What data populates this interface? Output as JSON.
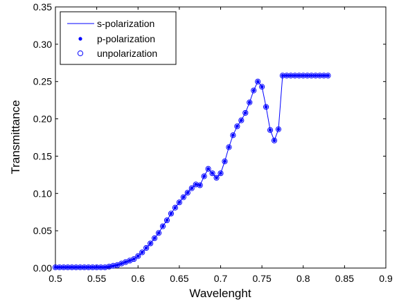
{
  "chart_data": {
    "type": "line",
    "xlabel": "Wavelenght",
    "ylabel": "Transmittance",
    "xlim": [
      0.5,
      0.9
    ],
    "ylim": [
      0,
      0.35
    ],
    "xticks": [
      "0.5",
      "0.55",
      "0.6",
      "0.65",
      "0.7",
      "0.75",
      "0.8",
      "0.85",
      "0.9"
    ],
    "yticks": [
      "0.00",
      "0.05",
      "0.10",
      "0.15",
      "0.20",
      "0.25",
      "0.30",
      "0.35"
    ],
    "grid": false,
    "legend_position": "top-left",
    "color": "#0000ff",
    "x": [
      0.5,
      0.505,
      0.51,
      0.515,
      0.52,
      0.525,
      0.53,
      0.535,
      0.54,
      0.545,
      0.55,
      0.555,
      0.56,
      0.565,
      0.57,
      0.575,
      0.58,
      0.585,
      0.59,
      0.595,
      0.6,
      0.605,
      0.61,
      0.615,
      0.62,
      0.625,
      0.63,
      0.635,
      0.64,
      0.645,
      0.65,
      0.655,
      0.66,
      0.665,
      0.67,
      0.675,
      0.68,
      0.685,
      0.69,
      0.695,
      0.7,
      0.705,
      0.71,
      0.715,
      0.72,
      0.725,
      0.73,
      0.735,
      0.74,
      0.745,
      0.75,
      0.755,
      0.76,
      0.765,
      0.77,
      0.775,
      0.78,
      0.785,
      0.79,
      0.795,
      0.8,
      0.805,
      0.81,
      0.815,
      0.82,
      0.825,
      0.83
    ],
    "series": [
      {
        "name": "s-polarization",
        "marker": "line",
        "values": [
          0.001,
          0.001,
          0.001,
          0.001,
          0.001,
          0.001,
          0.001,
          0.001,
          0.001,
          0.001,
          0.001,
          0.001,
          0.001,
          0.002,
          0.003,
          0.004,
          0.006,
          0.008,
          0.01,
          0.012,
          0.016,
          0.021,
          0.027,
          0.033,
          0.04,
          0.047,
          0.056,
          0.064,
          0.073,
          0.081,
          0.088,
          0.095,
          0.101,
          0.107,
          0.112,
          0.111,
          0.123,
          0.133,
          0.127,
          0.121,
          0.127,
          0.143,
          0.162,
          0.178,
          0.19,
          0.198,
          0.208,
          0.222,
          0.238,
          0.25,
          0.243,
          0.216,
          0.185,
          0.171,
          0.186,
          0.258,
          0.258,
          0.258,
          0.258,
          0.258,
          0.258,
          0.258,
          0.258,
          0.258,
          0.258,
          0.258,
          0.258
        ]
      },
      {
        "name": "p-polarization",
        "marker": "dot",
        "values": [
          0.001,
          0.001,
          0.001,
          0.001,
          0.001,
          0.001,
          0.001,
          0.001,
          0.001,
          0.001,
          0.001,
          0.001,
          0.001,
          0.002,
          0.003,
          0.004,
          0.006,
          0.008,
          0.01,
          0.012,
          0.016,
          0.021,
          0.027,
          0.033,
          0.04,
          0.047,
          0.056,
          0.064,
          0.073,
          0.081,
          0.088,
          0.095,
          0.101,
          0.107,
          0.112,
          0.111,
          0.123,
          0.133,
          0.127,
          0.121,
          0.127,
          0.143,
          0.162,
          0.178,
          0.19,
          0.198,
          0.208,
          0.222,
          0.238,
          0.25,
          0.243,
          0.216,
          0.185,
          0.171,
          0.186,
          0.258,
          0.258,
          0.258,
          0.258,
          0.258,
          0.258,
          0.258,
          0.258,
          0.258,
          0.258,
          0.258,
          0.258
        ]
      },
      {
        "name": "unpolarization",
        "marker": "circle",
        "values": [
          0.001,
          0.001,
          0.001,
          0.001,
          0.001,
          0.001,
          0.001,
          0.001,
          0.001,
          0.001,
          0.001,
          0.001,
          0.001,
          0.002,
          0.003,
          0.004,
          0.006,
          0.008,
          0.01,
          0.012,
          0.016,
          0.021,
          0.027,
          0.033,
          0.04,
          0.047,
          0.056,
          0.064,
          0.073,
          0.081,
          0.088,
          0.095,
          0.101,
          0.107,
          0.112,
          0.111,
          0.123,
          0.133,
          0.127,
          0.121,
          0.127,
          0.143,
          0.162,
          0.178,
          0.19,
          0.198,
          0.208,
          0.222,
          0.238,
          0.25,
          0.243,
          0.216,
          0.185,
          0.171,
          0.186,
          0.258,
          0.258,
          0.258,
          0.258,
          0.258,
          0.258,
          0.258,
          0.258,
          0.258,
          0.258,
          0.258,
          0.258
        ]
      }
    ]
  }
}
